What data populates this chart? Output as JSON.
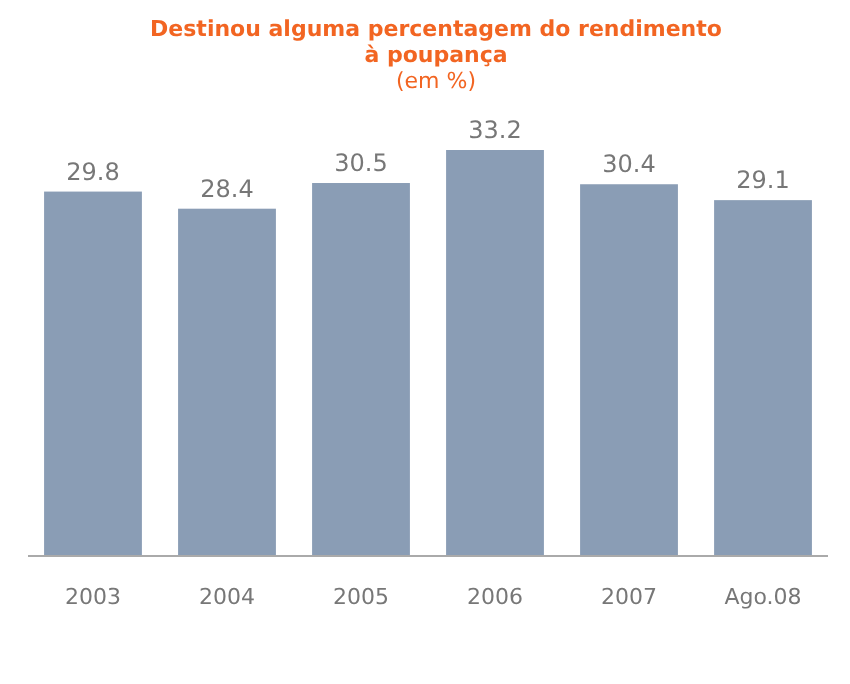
{
  "chart_data": {
    "type": "bar",
    "title": "Destinou alguma percentagem do rendimento à poupança",
    "subtitle": "(em %)",
    "categories": [
      "2003",
      "2004",
      "2005",
      "2006",
      "2007",
      "Ago.08"
    ],
    "values": [
      29.8,
      28.4,
      30.5,
      33.2,
      30.4,
      29.1
    ],
    "color": "#8a9db5",
    "data_labels": true
  }
}
